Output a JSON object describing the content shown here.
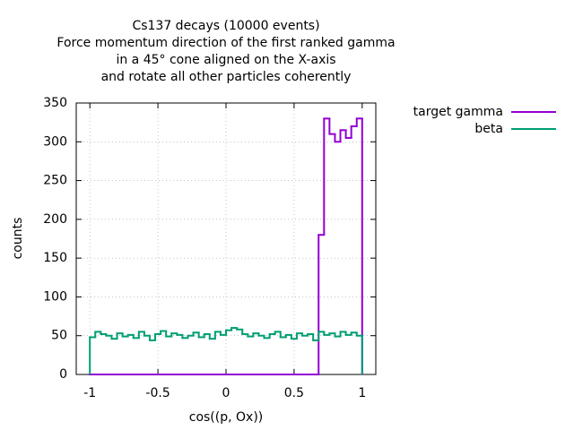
{
  "chart_data": {
    "type": "histogram",
    "title": [
      "Cs137 decays (10000 events)",
      "Force momentum direction of the first ranked gamma",
      "in a 45° cone aligned on the X-axis",
      "and rotate all other particles coherently"
    ],
    "xlabel": "cos((p, Ox))",
    "ylabel": "counts",
    "bins": [
      -1,
      -0.96,
      -0.92,
      -0.88,
      -0.84,
      -0.8,
      -0.76,
      -0.72,
      -0.68,
      -0.64,
      -0.6,
      -0.56,
      -0.52,
      -0.48,
      -0.44,
      -0.4,
      -0.36,
      -0.32,
      -0.28,
      -0.24,
      -0.2,
      -0.16,
      -0.12,
      -0.08,
      -0.04,
      0,
      0.04,
      0.08,
      0.12,
      0.16,
      0.2,
      0.24,
      0.28,
      0.32,
      0.36,
      0.4,
      0.44,
      0.48,
      0.52,
      0.56,
      0.6,
      0.64,
      0.68,
      0.72,
      0.76,
      0.8,
      0.84,
      0.88,
      0.92,
      0.96,
      1
    ],
    "series": [
      {
        "name": "target gamma",
        "color": "#9400d3",
        "values": [
          0,
          0,
          0,
          0,
          0,
          0,
          0,
          0,
          0,
          0,
          0,
          0,
          0,
          0,
          0,
          0,
          0,
          0,
          0,
          0,
          0,
          0,
          0,
          0,
          0,
          0,
          0,
          0,
          0,
          0,
          0,
          0,
          0,
          0,
          0,
          0,
          0,
          0,
          0,
          0,
          0,
          0,
          180,
          330,
          310,
          300,
          315,
          305,
          320,
          330
        ]
      },
      {
        "name": "beta",
        "color": "#009e73",
        "values": [
          48,
          55,
          52,
          50,
          46,
          53,
          49,
          51,
          47,
          55,
          50,
          44,
          52,
          56,
          49,
          53,
          51,
          47,
          50,
          54,
          48,
          52,
          46,
          55,
          51,
          57,
          60,
          58,
          52,
          49,
          53,
          50,
          47,
          52,
          55,
          48,
          51,
          46,
          53,
          50,
          52,
          44,
          55,
          51,
          53,
          49,
          55,
          51,
          54,
          50
        ]
      }
    ],
    "xlim": [
      -1.1,
      1.1
    ],
    "ylim": [
      0,
      350
    ],
    "xticks": [
      -1,
      -0.5,
      0,
      0.5,
      1
    ],
    "yticks": [
      0,
      50,
      100,
      150,
      200,
      250,
      300,
      350
    ],
    "grid": true
  }
}
